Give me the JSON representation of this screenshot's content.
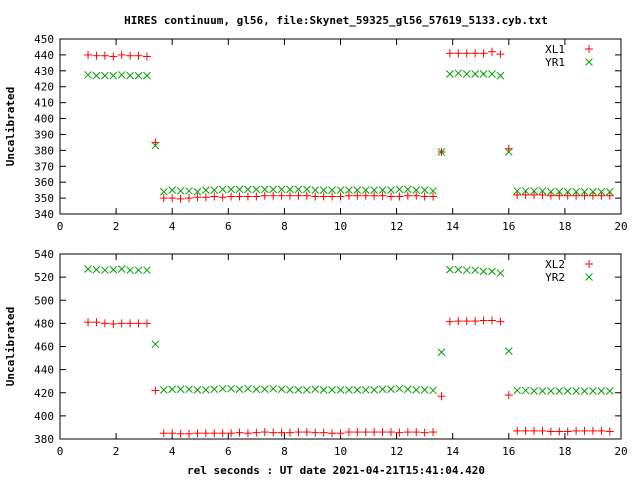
{
  "title": "HIRES continuum, gl56, file:Skynet_59325_gl56_57619_5133.cyb.txt",
  "xlabel": "rel seconds : UT date 2021-04-21T15:41:04.420",
  "chart_data": [
    {
      "type": "scatter",
      "ylabel": "Uncalibrated",
      "xlim": [
        0,
        20
      ],
      "ylim": [
        340,
        450
      ],
      "xticks": [
        0,
        2,
        4,
        6,
        8,
        10,
        12,
        14,
        16,
        18,
        20
      ],
      "yticks": [
        340,
        350,
        360,
        370,
        380,
        390,
        400,
        410,
        420,
        430,
        440,
        450
      ],
      "legend_position": "top-right",
      "series": [
        {
          "name": "XL1",
          "marker": "plus",
          "color": "#ff0000",
          "points": [
            [
              1.0,
              440
            ],
            [
              1.3,
              439.5
            ],
            [
              1.6,
              439.5
            ],
            [
              1.9,
              439
            ],
            [
              2.2,
              440
            ],
            [
              2.5,
              439.5
            ],
            [
              2.8,
              439.5
            ],
            [
              3.1,
              439
            ],
            [
              3.4,
              385
            ],
            [
              3.7,
              350
            ],
            [
              4.0,
              350
            ],
            [
              4.3,
              349.5
            ],
            [
              4.6,
              350
            ],
            [
              4.9,
              350.5
            ],
            [
              5.2,
              350.5
            ],
            [
              5.5,
              351
            ],
            [
              5.8,
              350.5
            ],
            [
              6.1,
              351
            ],
            [
              6.4,
              351
            ],
            [
              6.7,
              351
            ],
            [
              7.0,
              351
            ],
            [
              7.3,
              351.5
            ],
            [
              7.6,
              351.5
            ],
            [
              7.9,
              351.5
            ],
            [
              8.2,
              351.5
            ],
            [
              8.5,
              351.5
            ],
            [
              8.8,
              351.5
            ],
            [
              9.1,
              351
            ],
            [
              9.4,
              351
            ],
            [
              9.7,
              351
            ],
            [
              10.0,
              351
            ],
            [
              10.3,
              351.5
            ],
            [
              10.6,
              351.5
            ],
            [
              10.9,
              351.5
            ],
            [
              11.2,
              351.5
            ],
            [
              11.5,
              351.5
            ],
            [
              11.8,
              351
            ],
            [
              12.1,
              351
            ],
            [
              12.4,
              351.5
            ],
            [
              12.7,
              351.5
            ],
            [
              13.0,
              351
            ],
            [
              13.3,
              351
            ],
            [
              13.6,
              379
            ],
            [
              13.9,
              441
            ],
            [
              14.2,
              441
            ],
            [
              14.5,
              441
            ],
            [
              14.8,
              441
            ],
            [
              15.1,
              441
            ],
            [
              15.4,
              442
            ],
            [
              15.7,
              440.5
            ],
            [
              16.0,
              381
            ],
            [
              16.3,
              352
            ],
            [
              16.6,
              352
            ],
            [
              16.9,
              352
            ],
            [
              17.2,
              352
            ],
            [
              17.5,
              351.5
            ],
            [
              17.8,
              351.5
            ],
            [
              18.1,
              351.5
            ],
            [
              18.4,
              351.5
            ],
            [
              18.7,
              351.5
            ],
            [
              19.0,
              351.5
            ],
            [
              19.3,
              351.5
            ],
            [
              19.6,
              351.5
            ]
          ]
        },
        {
          "name": "YR1",
          "marker": "cross",
          "color": "#00a000",
          "points": [
            [
              1.0,
              427.5
            ],
            [
              1.3,
              427
            ],
            [
              1.6,
              427
            ],
            [
              1.9,
              427
            ],
            [
              2.2,
              427.5
            ],
            [
              2.5,
              427
            ],
            [
              2.8,
              427
            ],
            [
              3.1,
              427
            ],
            [
              3.4,
              383
            ],
            [
              3.7,
              354
            ],
            [
              4.0,
              355
            ],
            [
              4.3,
              354.5
            ],
            [
              4.6,
              354.5
            ],
            [
              4.9,
              354
            ],
            [
              5.2,
              355
            ],
            [
              5.5,
              355
            ],
            [
              5.8,
              355.5
            ],
            [
              6.1,
              355.5
            ],
            [
              6.4,
              355.5
            ],
            [
              6.7,
              355.5
            ],
            [
              7.0,
              355.5
            ],
            [
              7.3,
              355.5
            ],
            [
              7.6,
              355.5
            ],
            [
              7.9,
              355.5
            ],
            [
              8.2,
              355.5
            ],
            [
              8.5,
              355.5
            ],
            [
              8.8,
              355.5
            ],
            [
              9.1,
              355
            ],
            [
              9.4,
              355
            ],
            [
              9.7,
              355
            ],
            [
              10.0,
              355
            ],
            [
              10.3,
              355
            ],
            [
              10.6,
              355
            ],
            [
              10.9,
              355
            ],
            [
              11.2,
              355
            ],
            [
              11.5,
              355
            ],
            [
              11.8,
              355
            ],
            [
              12.1,
              355.5
            ],
            [
              12.4,
              355.5
            ],
            [
              12.7,
              355
            ],
            [
              13.0,
              355
            ],
            [
              13.3,
              354.5
            ],
            [
              13.6,
              379
            ],
            [
              13.9,
              428
            ],
            [
              14.2,
              428.5
            ],
            [
              14.5,
              428
            ],
            [
              14.8,
              428
            ],
            [
              15.1,
              428
            ],
            [
              15.4,
              428
            ],
            [
              15.7,
              427
            ],
            [
              16.0,
              379
            ],
            [
              16.3,
              354.5
            ],
            [
              16.6,
              354.5
            ],
            [
              16.9,
              354.5
            ],
            [
              17.2,
              354.5
            ],
            [
              17.5,
              354
            ],
            [
              17.8,
              354
            ],
            [
              18.1,
              354
            ],
            [
              18.4,
              354
            ],
            [
              18.7,
              354
            ],
            [
              19.0,
              354
            ],
            [
              19.3,
              354
            ],
            [
              19.6,
              354
            ]
          ]
        }
      ]
    },
    {
      "type": "scatter",
      "ylabel": "Uncalibrated",
      "xlim": [
        0,
        20
      ],
      "ylim": [
        380,
        540
      ],
      "xticks": [
        0,
        2,
        4,
        6,
        8,
        10,
        12,
        14,
        16,
        18,
        20
      ],
      "yticks": [
        380,
        400,
        420,
        440,
        460,
        480,
        500,
        520,
        540
      ],
      "legend_position": "top-right",
      "series": [
        {
          "name": "XL2",
          "marker": "plus",
          "color": "#ff0000",
          "points": [
            [
              1.0,
              481
            ],
            [
              1.3,
              481
            ],
            [
              1.6,
              480
            ],
            [
              1.9,
              479.5
            ],
            [
              2.2,
              480
            ],
            [
              2.5,
              480
            ],
            [
              2.8,
              480
            ],
            [
              3.1,
              480
            ],
            [
              3.4,
              422
            ],
            [
              3.7,
              385
            ],
            [
              4.0,
              385
            ],
            [
              4.3,
              384.5
            ],
            [
              4.6,
              384.5
            ],
            [
              4.9,
              385
            ],
            [
              5.2,
              385
            ],
            [
              5.5,
              385
            ],
            [
              5.8,
              385
            ],
            [
              6.1,
              385
            ],
            [
              6.4,
              385.5
            ],
            [
              6.7,
              385
            ],
            [
              7.0,
              385.5
            ],
            [
              7.3,
              386
            ],
            [
              7.6,
              385.5
            ],
            [
              7.9,
              385.5
            ],
            [
              8.2,
              385.5
            ],
            [
              8.5,
              386
            ],
            [
              8.8,
              386
            ],
            [
              9.1,
              385.5
            ],
            [
              9.4,
              385.5
            ],
            [
              9.7,
              385
            ],
            [
              10.0,
              385
            ],
            [
              10.3,
              386
            ],
            [
              10.6,
              386
            ],
            [
              10.9,
              386
            ],
            [
              11.2,
              386
            ],
            [
              11.5,
              386
            ],
            [
              11.8,
              386
            ],
            [
              12.1,
              385.5
            ],
            [
              12.4,
              386
            ],
            [
              12.7,
              386
            ],
            [
              13.0,
              385.5
            ],
            [
              13.3,
              386
            ],
            [
              13.6,
              417
            ],
            [
              13.9,
              481.5
            ],
            [
              14.2,
              482
            ],
            [
              14.5,
              482
            ],
            [
              14.8,
              482
            ],
            [
              15.1,
              482.5
            ],
            [
              15.4,
              482.5
            ],
            [
              15.7,
              481.5
            ],
            [
              16.0,
              418
            ],
            [
              16.3,
              387
            ],
            [
              16.6,
              387
            ],
            [
              16.9,
              387
            ],
            [
              17.2,
              387
            ],
            [
              17.5,
              386.5
            ],
            [
              17.8,
              386.5
            ],
            [
              18.1,
              386.5
            ],
            [
              18.4,
              387
            ],
            [
              18.7,
              387
            ],
            [
              19.0,
              387
            ],
            [
              19.3,
              387
            ],
            [
              19.6,
              386.5
            ]
          ]
        },
        {
          "name": "YR2",
          "marker": "cross",
          "color": "#00a000",
          "points": [
            [
              1.0,
              527
            ],
            [
              1.3,
              526.5
            ],
            [
              1.6,
              526
            ],
            [
              1.9,
              526.5
            ],
            [
              2.2,
              527
            ],
            [
              2.5,
              526
            ],
            [
              2.8,
              526
            ],
            [
              3.1,
              526
            ],
            [
              3.4,
              462
            ],
            [
              3.7,
              422.5
            ],
            [
              4.0,
              423
            ],
            [
              4.3,
              423
            ],
            [
              4.6,
              423
            ],
            [
              4.9,
              422.5
            ],
            [
              5.2,
              422.5
            ],
            [
              5.5,
              423
            ],
            [
              5.8,
              423.5
            ],
            [
              6.1,
              423.5
            ],
            [
              6.4,
              423
            ],
            [
              6.7,
              423.5
            ],
            [
              7.0,
              423
            ],
            [
              7.3,
              423
            ],
            [
              7.6,
              423.5
            ],
            [
              7.9,
              423
            ],
            [
              8.2,
              422.5
            ],
            [
              8.5,
              422.5
            ],
            [
              8.8,
              422.5
            ],
            [
              9.1,
              423
            ],
            [
              9.4,
              422.5
            ],
            [
              9.7,
              422.5
            ],
            [
              10.0,
              422.5
            ],
            [
              10.3,
              422.5
            ],
            [
              10.6,
              422.5
            ],
            [
              10.9,
              422.5
            ],
            [
              11.2,
              422.5
            ],
            [
              11.5,
              423
            ],
            [
              11.8,
              423
            ],
            [
              12.1,
              423.5
            ],
            [
              12.4,
              423
            ],
            [
              12.7,
              422.5
            ],
            [
              13.0,
              422.5
            ],
            [
              13.3,
              422
            ],
            [
              13.6,
              455
            ],
            [
              13.9,
              526.5
            ],
            [
              14.2,
              526.5
            ],
            [
              14.5,
              526
            ],
            [
              14.8,
              526
            ],
            [
              15.1,
              525
            ],
            [
              15.4,
              525
            ],
            [
              15.7,
              523.5
            ],
            [
              16.0,
              456
            ],
            [
              16.3,
              422
            ],
            [
              16.6,
              422
            ],
            [
              16.9,
              421.5
            ],
            [
              17.2,
              421.5
            ],
            [
              17.5,
              421.5
            ],
            [
              17.8,
              421.5
            ],
            [
              18.1,
              421.5
            ],
            [
              18.4,
              421.5
            ],
            [
              18.7,
              421.5
            ],
            [
              19.0,
              421.5
            ],
            [
              19.3,
              421.5
            ],
            [
              19.6,
              421.5
            ]
          ]
        }
      ]
    }
  ]
}
